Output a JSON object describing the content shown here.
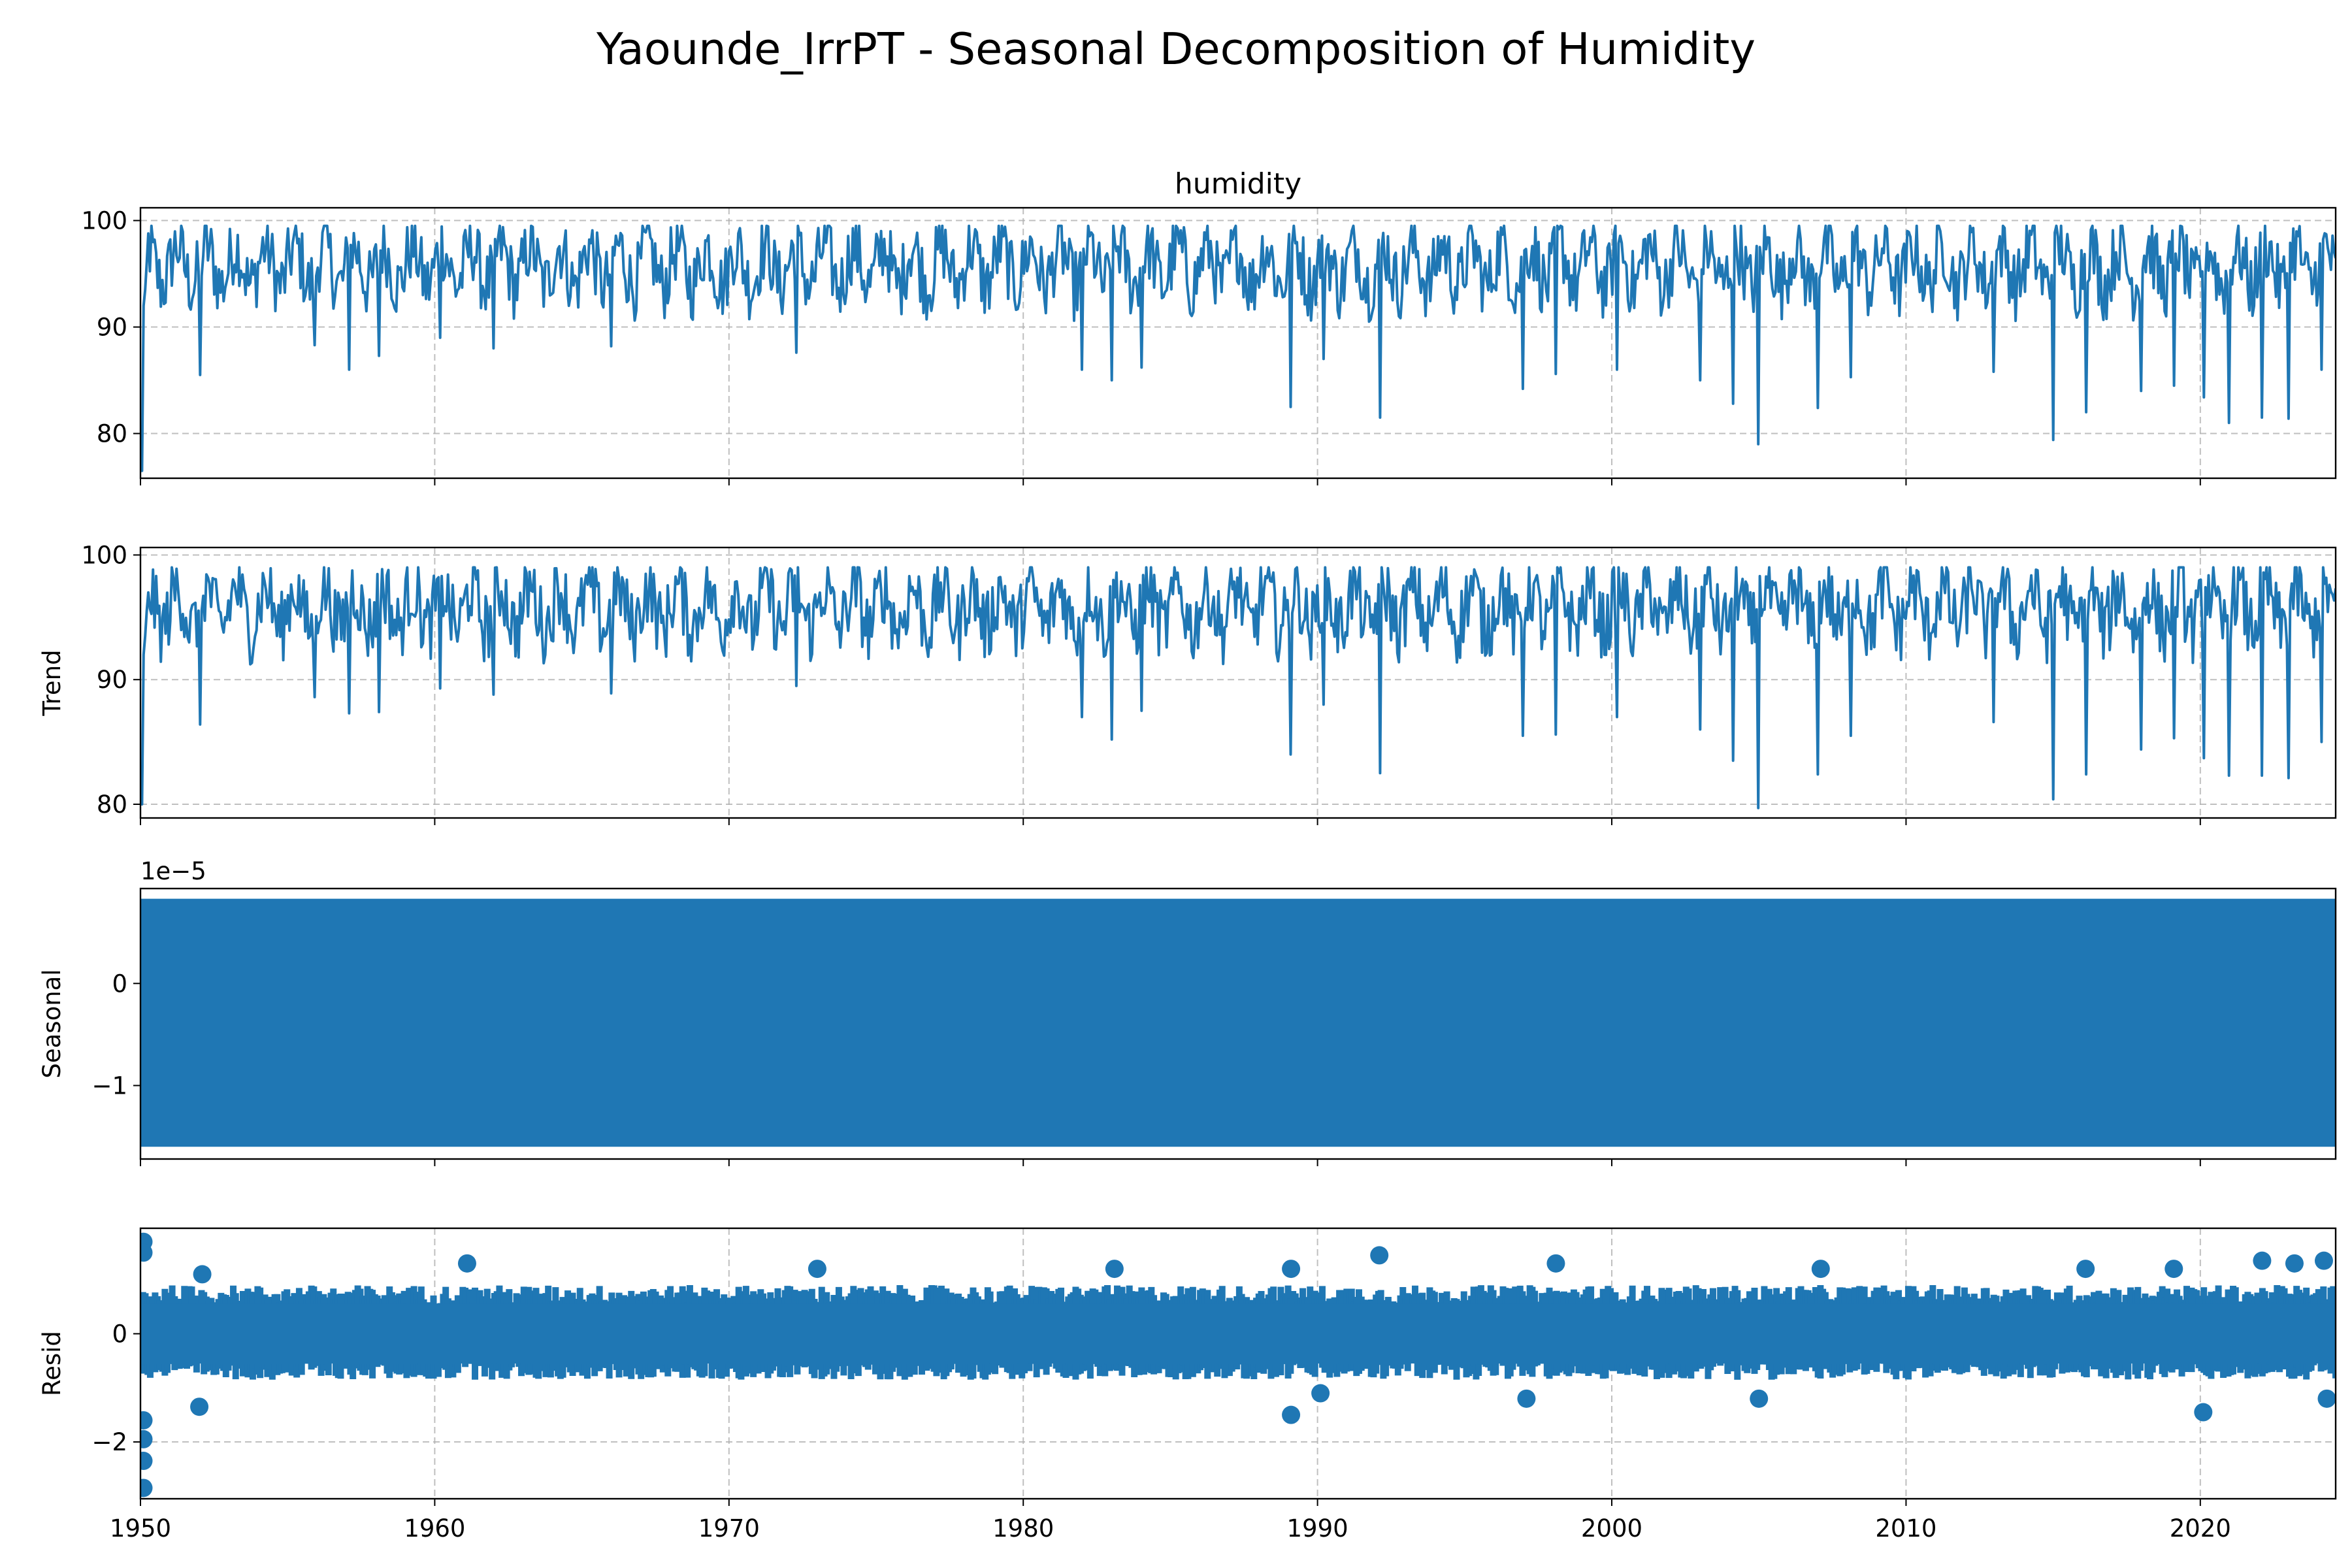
{
  "figure": {
    "title": "Yaounde_IrrPT - Seasonal Decomposition of Humidity"
  },
  "colors": {
    "series": "#1f77b4",
    "grid": "#b0b0b0",
    "axis": "#000000",
    "background": "#ffffff"
  },
  "chart_data": [
    {
      "id": "observed",
      "type": "line",
      "title": "humidity",
      "ylabel": "",
      "xlim": [
        1950,
        2024.6
      ],
      "ylim": [
        75.8,
        101.2
      ],
      "yticks": [
        80,
        90,
        100
      ],
      "ytick_labels": [
        "80",
        "90",
        "100"
      ],
      "xticks": [
        1950,
        1960,
        1970,
        1980,
        1990,
        2000,
        2010,
        2020
      ],
      "xtick_labels": [],
      "grid": true,
      "typical_range": [
        92,
        99.5
      ],
      "start_values": [
        76.5,
        84,
        92,
        93.5,
        96
      ],
      "dips": [
        {
          "x": 1950.05,
          "y": 76.5
        },
        {
          "x": 1952.0,
          "y": 85.5
        },
        {
          "x": 1955.9,
          "y": 88.3
        },
        {
          "x": 1957.1,
          "y": 86.0
        },
        {
          "x": 1958.1,
          "y": 87.3
        },
        {
          "x": 1960.2,
          "y": 89.0
        },
        {
          "x": 1962.0,
          "y": 88.0
        },
        {
          "x": 1966.0,
          "y": 88.2
        },
        {
          "x": 1972.3,
          "y": 87.6
        },
        {
          "x": 1982.0,
          "y": 86.0
        },
        {
          "x": 1983.0,
          "y": 85.0
        },
        {
          "x": 1984.0,
          "y": 86.2
        },
        {
          "x": 1989.1,
          "y": 82.5
        },
        {
          "x": 1990.2,
          "y": 87.0
        },
        {
          "x": 1992.1,
          "y": 81.5
        },
        {
          "x": 1997.0,
          "y": 84.2
        },
        {
          "x": 1998.1,
          "y": 85.6
        },
        {
          "x": 2000.2,
          "y": 86.0
        },
        {
          "x": 2003.0,
          "y": 85.0
        },
        {
          "x": 2004.1,
          "y": 82.8
        },
        {
          "x": 2005.0,
          "y": 79.0
        },
        {
          "x": 2007.0,
          "y": 82.4
        },
        {
          "x": 2008.1,
          "y": 85.3
        },
        {
          "x": 2013.0,
          "y": 85.8
        },
        {
          "x": 2015.0,
          "y": 79.4
        },
        {
          "x": 2016.1,
          "y": 82.0
        },
        {
          "x": 2018.0,
          "y": 84.0
        },
        {
          "x": 2019.1,
          "y": 84.5
        },
        {
          "x": 2020.1,
          "y": 83.4
        },
        {
          "x": 2021.0,
          "y": 81.0
        },
        {
          "x": 2022.1,
          "y": 81.5
        },
        {
          "x": 2023.0,
          "y": 81.4
        },
        {
          "x": 2024.1,
          "y": 86.0
        }
      ]
    },
    {
      "id": "trend",
      "type": "line",
      "title": "",
      "ylabel": "Trend",
      "xlim": [
        1950,
        2024.6
      ],
      "ylim": [
        78.9,
        100.6
      ],
      "yticks": [
        80,
        90,
        100
      ],
      "ytick_labels": [
        "80",
        "90",
        "100"
      ],
      "xticks": [
        1950,
        1960,
        1970,
        1980,
        1990,
        2000,
        2010,
        2020
      ],
      "xtick_labels": [],
      "grid": true,
      "typical_range": [
        92.5,
        99.0
      ],
      "start_values": [
        80.0,
        84,
        92,
        93.5,
        95.5
      ],
      "dips": [
        {
          "x": 1950.05,
          "y": 80.0
        },
        {
          "x": 1952.0,
          "y": 86.4
        },
        {
          "x": 1955.9,
          "y": 88.6
        },
        {
          "x": 1957.1,
          "y": 87.3
        },
        {
          "x": 1958.1,
          "y": 87.4
        },
        {
          "x": 1960.2,
          "y": 89.3
        },
        {
          "x": 1962.0,
          "y": 88.8
        },
        {
          "x": 1966.0,
          "y": 88.9
        },
        {
          "x": 1972.3,
          "y": 89.5
        },
        {
          "x": 1982.0,
          "y": 87.0
        },
        {
          "x": 1983.0,
          "y": 85.2
        },
        {
          "x": 1984.0,
          "y": 87.5
        },
        {
          "x": 1989.1,
          "y": 84.0
        },
        {
          "x": 1990.2,
          "y": 88.0
        },
        {
          "x": 1992.1,
          "y": 82.5
        },
        {
          "x": 1997.0,
          "y": 85.5
        },
        {
          "x": 1998.1,
          "y": 85.6
        },
        {
          "x": 2000.2,
          "y": 87.0
        },
        {
          "x": 2003.0,
          "y": 86.0
        },
        {
          "x": 2004.1,
          "y": 83.5
        },
        {
          "x": 2005.0,
          "y": 79.7
        },
        {
          "x": 2007.0,
          "y": 82.4
        },
        {
          "x": 2008.1,
          "y": 85.5
        },
        {
          "x": 2013.0,
          "y": 86.6
        },
        {
          "x": 2015.0,
          "y": 80.4
        },
        {
          "x": 2016.1,
          "y": 82.4
        },
        {
          "x": 2018.0,
          "y": 84.4
        },
        {
          "x": 2019.1,
          "y": 85.3
        },
        {
          "x": 2020.1,
          "y": 83.7
        },
        {
          "x": 2021.0,
          "y": 82.3
        },
        {
          "x": 2022.1,
          "y": 82.3
        },
        {
          "x": 2023.0,
          "y": 82.1
        },
        {
          "x": 2024.1,
          "y": 85.0
        }
      ]
    },
    {
      "id": "seasonal",
      "type": "area",
      "title": "",
      "ylabel": "Seasonal",
      "offset_text": "1e−5",
      "scale": 1e-05,
      "xlim": [
        1950,
        2024.6
      ],
      "ylim": [
        -1.72,
        0.93
      ],
      "yticks": [
        -1,
        0
      ],
      "ytick_labels": [
        "−1",
        "0"
      ],
      "xticks": [
        1950,
        1960,
        1970,
        1980,
        1990,
        2000,
        2010,
        2020
      ],
      "xtick_labels": [],
      "grid": false,
      "band": [
        -1.6,
        0.83
      ]
    },
    {
      "id": "resid",
      "type": "scatter",
      "title": "",
      "ylabel": "Resid",
      "xlim": [
        1950,
        2024.6
      ],
      "ylim": [
        -3.05,
        1.95
      ],
      "yticks": [
        -2,
        0
      ],
      "ytick_labels": [
        "−2",
        "0"
      ],
      "xticks": [
        1950,
        1960,
        1970,
        1980,
        1990,
        2000,
        2010,
        2020
      ],
      "xtick_labels": [
        "1950",
        "1960",
        "1970",
        "1980",
        "1990",
        "2000",
        "2010",
        "2020"
      ],
      "grid": true,
      "typical_range": [
        -1.0,
        1.0
      ],
      "extremes": [
        {
          "x": 1950.1,
          "y": 1.7
        },
        {
          "x": 1950.1,
          "y": 1.5
        },
        {
          "x": 1950.1,
          "y": -2.85
        },
        {
          "x": 1950.1,
          "y": -2.35
        },
        {
          "x": 1950.1,
          "y": -1.95
        },
        {
          "x": 1950.1,
          "y": -1.6
        },
        {
          "x": 1952.1,
          "y": 1.1
        },
        {
          "x": 1952.0,
          "y": -1.35
        },
        {
          "x": 1961.1,
          "y": 1.3
        },
        {
          "x": 1973.0,
          "y": 1.2
        },
        {
          "x": 1983.1,
          "y": 1.2
        },
        {
          "x": 1989.1,
          "y": 1.2
        },
        {
          "x": 1989.1,
          "y": -1.5
        },
        {
          "x": 1992.1,
          "y": 1.45
        },
        {
          "x": 1990.1,
          "y": -1.1
        },
        {
          "x": 1998.1,
          "y": 1.3
        },
        {
          "x": 1997.1,
          "y": -1.2
        },
        {
          "x": 2005.0,
          "y": -1.2
        },
        {
          "x": 2007.1,
          "y": 1.2
        },
        {
          "x": 2016.1,
          "y": 1.2
        },
        {
          "x": 2019.1,
          "y": 1.2
        },
        {
          "x": 2020.1,
          "y": -1.45
        },
        {
          "x": 2022.1,
          "y": 1.35
        },
        {
          "x": 2023.2,
          "y": 1.3
        },
        {
          "x": 2024.2,
          "y": 1.35
        },
        {
          "x": 2024.3,
          "y": -1.2
        }
      ]
    }
  ]
}
